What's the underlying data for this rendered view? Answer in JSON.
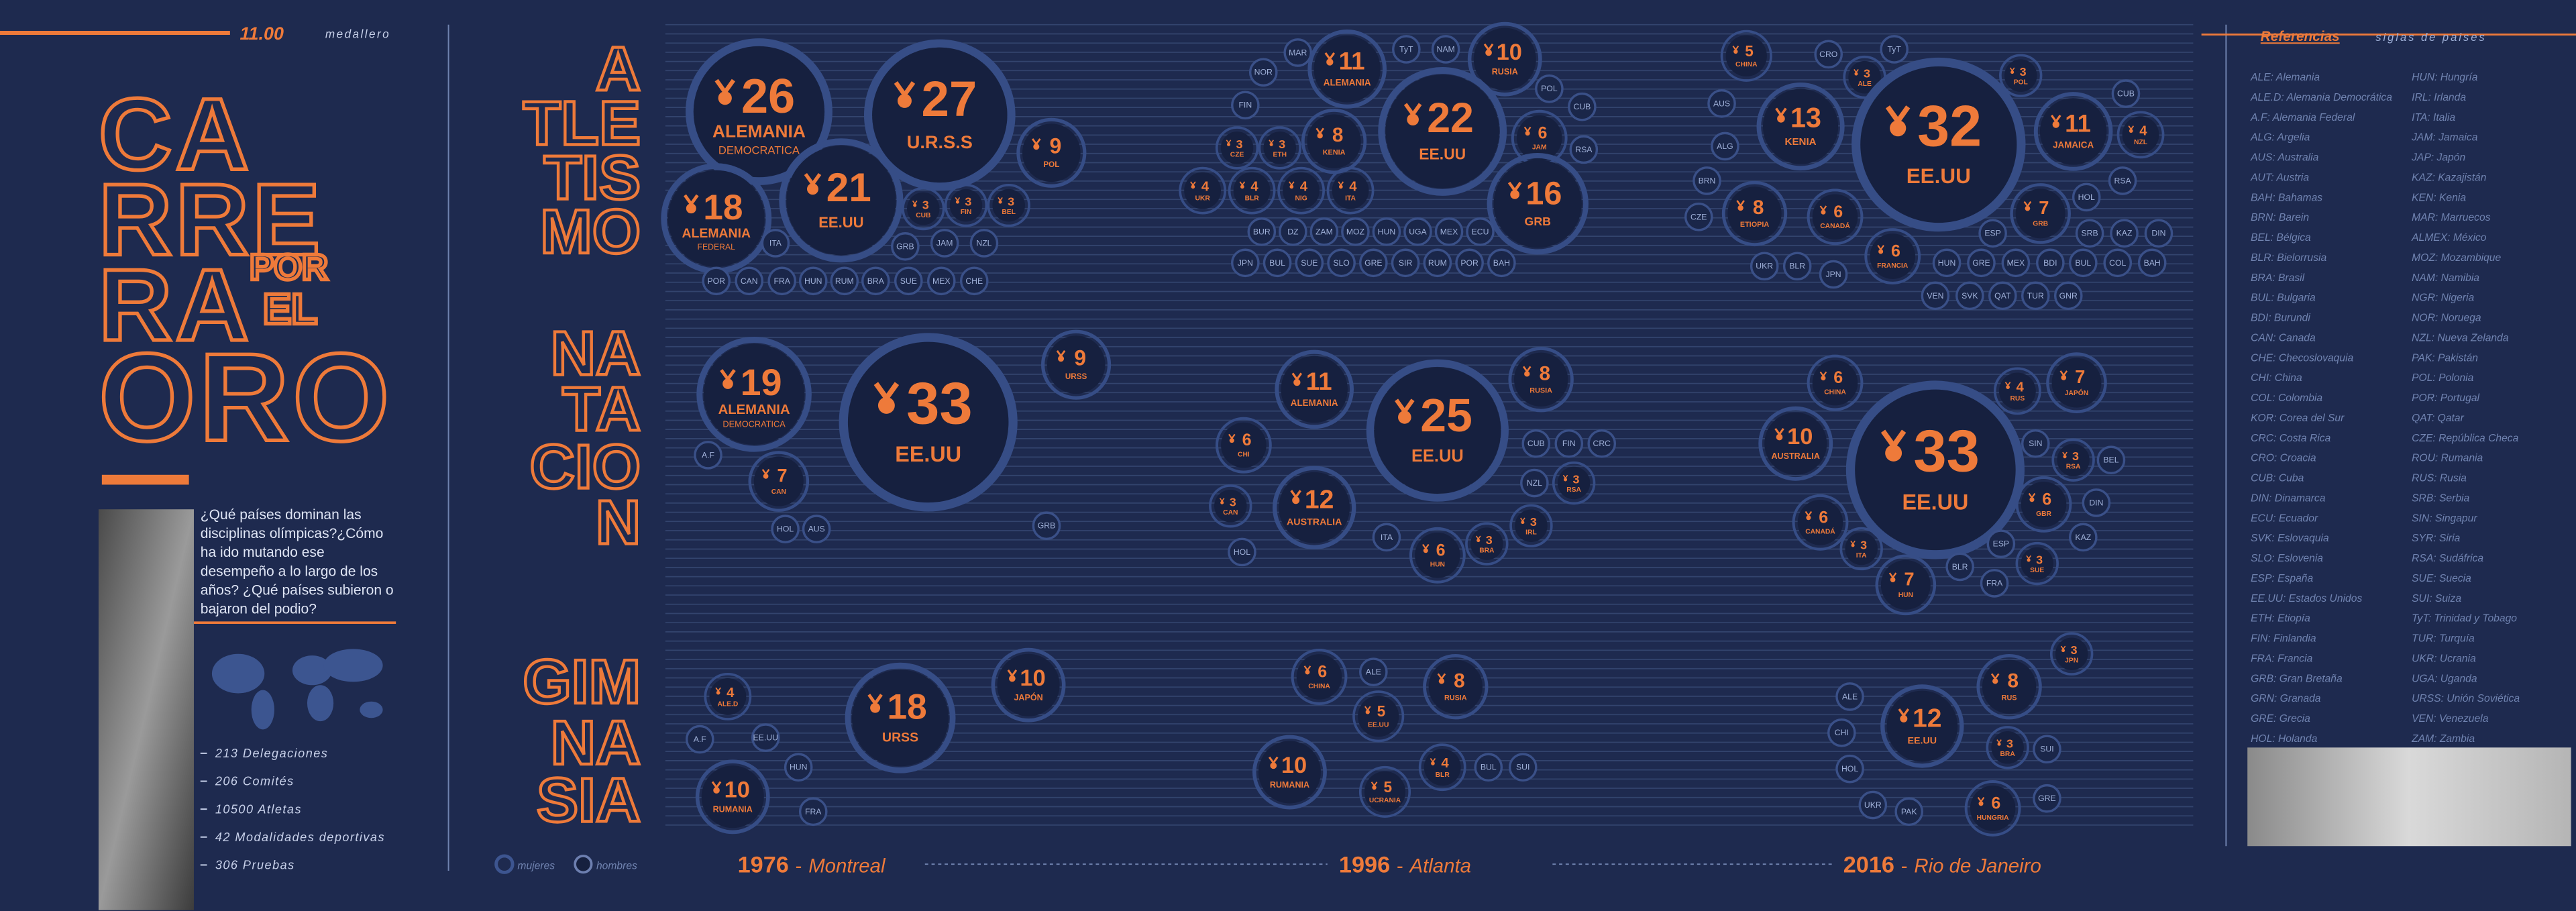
{
  "header": {
    "number": "11.00",
    "label": "medallero"
  },
  "title": {
    "lines": [
      "CA",
      "RRE",
      "RA",
      "ORO"
    ],
    "small": [
      "POR",
      "EL"
    ]
  },
  "intro": [
    "¿Qué países dominan las",
    "disciplinas olímpicas?¿Cómo",
    "ha ido mutando ese",
    "desempeño a lo largo de los",
    "años? ¿Qué países subieron o",
    "bajaron del podio?"
  ],
  "stats": [
    "213 Delegaciones",
    "206 Comités",
    "10500 Atletas",
    "42  Modalidades deportivas",
    "306 Pruebas"
  ],
  "legend": [
    "mujeres",
    "hombres"
  ],
  "sections": [
    {
      "title": [
        "A",
        "TLE",
        "TIS",
        "MO"
      ],
      "games": [
        {
          "bubbles": [
            {
              "name": "ALEMANIA",
              "sub": "DEMOCRATICA",
              "value": 26
            },
            {
              "name": "U.R.S.S",
              "value": 27
            },
            {
              "name": "POL",
              "value": 9
            },
            {
              "name": "ALEMANIA",
              "sub": "FEDERAL",
              "value": 18
            },
            {
              "name": "EE.UU",
              "value": 21
            },
            {
              "name": "CUB",
              "value": 3
            },
            {
              "name": "FIN",
              "value": 3
            },
            {
              "name": "BEL",
              "value": 3
            },
            {
              "name": "ITA"
            },
            {
              "name": "GRB"
            },
            {
              "name": "JAM"
            },
            {
              "name": "NZL"
            },
            {
              "name": "POR"
            },
            {
              "name": "CAN"
            },
            {
              "name": "FRA"
            },
            {
              "name": "HUN"
            },
            {
              "name": "RUM"
            },
            {
              "name": "BRA"
            },
            {
              "name": "SUE"
            },
            {
              "name": "MEX"
            },
            {
              "name": "CHE"
            }
          ]
        },
        {
          "bubbles": [
            {
              "name": "MAR"
            },
            {
              "name": "TyT"
            },
            {
              "name": "NAM"
            },
            {
              "name": "RUSIA",
              "value": 10
            },
            {
              "name": "NOR"
            },
            {
              "name": "ALEMANIA",
              "value": 11
            },
            {
              "name": "FIN"
            },
            {
              "name": "CZE",
              "value": 3
            },
            {
              "name": "ETH",
              "value": 3
            },
            {
              "name": "KENIA",
              "value": 8
            },
            {
              "name": "EE.UU",
              "value": 22
            },
            {
              "name": "POL"
            },
            {
              "name": "CUB"
            },
            {
              "name": "JAM",
              "value": 6
            },
            {
              "name": "RSA"
            },
            {
              "name": "UKR",
              "value": 4
            },
            {
              "name": "BLR",
              "value": 4
            },
            {
              "name": "NIG",
              "value": 4
            },
            {
              "name": "ITA",
              "value": 4
            },
            {
              "name": "GRB",
              "value": 16
            },
            {
              "name": "BUR"
            },
            {
              "name": "DZ"
            },
            {
              "name": "ZAM"
            },
            {
              "name": "MOZ"
            },
            {
              "name": "HUN"
            },
            {
              "name": "UGA"
            },
            {
              "name": "MEX"
            },
            {
              "name": "ECU"
            },
            {
              "name": "JPN"
            },
            {
              "name": "BUL"
            },
            {
              "name": "SUE"
            },
            {
              "name": "SLO"
            },
            {
              "name": "GRE"
            },
            {
              "name": "SIR"
            },
            {
              "name": "RUM"
            },
            {
              "name": "POR"
            },
            {
              "name": "BAH"
            }
          ]
        },
        {
          "bubbles": [
            {
              "name": "CHINA",
              "value": 5
            },
            {
              "name": "CRO"
            },
            {
              "name": "TyT"
            },
            {
              "name": "ALE",
              "value": 3
            },
            {
              "name": "POL",
              "value": 3
            },
            {
              "name": "CUB"
            },
            {
              "name": "AUS"
            },
            {
              "name": "KENIA",
              "value": 13
            },
            {
              "name": "EE.UU",
              "value": 32
            },
            {
              "name": "JAMAICA",
              "value": 11
            },
            {
              "name": "NZL",
              "value": 4
            },
            {
              "name": "ALG"
            },
            {
              "name": "RSA"
            },
            {
              "name": "BRN"
            },
            {
              "name": "HOL"
            },
            {
              "name": "CZE"
            },
            {
              "name": "ETIOPIA",
              "value": 8
            },
            {
              "name": "CANADÁ",
              "value": 6
            },
            {
              "name": "ESP"
            },
            {
              "name": "GRB",
              "value": 7
            },
            {
              "name": "SRB"
            },
            {
              "name": "KAZ"
            },
            {
              "name": "DIN"
            },
            {
              "name": "FRANCIA",
              "value": 6
            },
            {
              "name": "UKR"
            },
            {
              "name": "BLR"
            },
            {
              "name": "JPN"
            },
            {
              "name": "HUN"
            },
            {
              "name": "GRE"
            },
            {
              "name": "MEX"
            },
            {
              "name": "BDI"
            },
            {
              "name": "BUL"
            },
            {
              "name": "COL"
            },
            {
              "name": "BAH"
            },
            {
              "name": "VEN"
            },
            {
              "name": "SVK"
            },
            {
              "name": "QAT"
            },
            {
              "name": "TUR"
            },
            {
              "name": "GNR"
            }
          ]
        }
      ]
    },
    {
      "title": [
        "NA",
        "TA",
        "CIO",
        "N"
      ],
      "games": [
        {
          "bubbles": [
            {
              "name": "ALEMANIA",
              "sub": "DEMOCRATICA",
              "value": 19
            },
            {
              "name": "EE.UU",
              "value": 33
            },
            {
              "name": "URSS",
              "value": 9
            },
            {
              "name": "A.F"
            },
            {
              "name": "CAN",
              "value": 7
            },
            {
              "name": "HOL"
            },
            {
              "name": "AUS"
            },
            {
              "name": "GRB"
            }
          ]
        },
        {
          "bubbles": [
            {
              "name": "ALEMANIA",
              "value": 11
            },
            {
              "name": "RUSIA",
              "value": 8
            },
            {
              "name": "CHI",
              "value": 6
            },
            {
              "name": "EE.UU",
              "value": 25
            },
            {
              "name": "CUB"
            },
            {
              "name": "FIN"
            },
            {
              "name": "CRC"
            },
            {
              "name": "CAN",
              "value": 3
            },
            {
              "name": "AUSTRALIA",
              "value": 12
            },
            {
              "name": "NZL"
            },
            {
              "name": "RSA",
              "value": 3
            },
            {
              "name": "HOL"
            },
            {
              "name": "ITA"
            },
            {
              "name": "HUN",
              "value": 6
            },
            {
              "name": "BRA",
              "value": 3
            },
            {
              "name": "IRL",
              "value": 3
            }
          ]
        },
        {
          "bubbles": [
            {
              "name": "CHINA",
              "value": 6
            },
            {
              "name": "RUS",
              "value": 4
            },
            {
              "name": "JAPÓN",
              "value": 7
            },
            {
              "name": "AUSTRALIA",
              "value": 10
            },
            {
              "name": "EE.UU",
              "value": 33
            },
            {
              "name": "SIN"
            },
            {
              "name": "RSA",
              "value": 3
            },
            {
              "name": "BEL"
            },
            {
              "name": "CANADÁ",
              "value": 6
            },
            {
              "name": "GBR",
              "value": 6
            },
            {
              "name": "DIN"
            },
            {
              "name": "KAZ"
            },
            {
              "name": "ITA",
              "value": 3
            },
            {
              "name": "ESP"
            },
            {
              "name": "SUE",
              "value": 3
            },
            {
              "name": "BLR"
            },
            {
              "name": "FRA"
            },
            {
              "name": "HUN",
              "value": 7
            }
          ]
        }
      ]
    },
    {
      "title": [
        "GIM",
        "NA",
        "SIA"
      ],
      "games": [
        {
          "bubbles": [
            {
              "name": "ALE.D",
              "value": 4
            },
            {
              "name": "URSS",
              "value": 18
            },
            {
              "name": "JAPÓN",
              "value": 10
            },
            {
              "name": "A.F"
            },
            {
              "name": "EE.UU"
            },
            {
              "name": "HUN"
            },
            {
              "name": "RUMANIA",
              "value": 10
            },
            {
              "name": "FRA"
            }
          ]
        },
        {
          "bubbles": [
            {
              "name": "CHINA",
              "value": 6
            },
            {
              "name": "ALE"
            },
            {
              "name": "RUSIA",
              "value": 8
            },
            {
              "name": "EE.UU",
              "value": 5
            },
            {
              "name": "RUMANIA",
              "value": 10
            },
            {
              "name": "BLR",
              "value": 4
            },
            {
              "name": "BUL"
            },
            {
              "name": "SUI"
            },
            {
              "name": "UCRANIA",
              "value": 5
            }
          ]
        },
        {
          "bubbles": [
            {
              "name": "JPN",
              "value": 3
            },
            {
              "name": "RUS",
              "value": 8
            },
            {
              "name": "ALE"
            },
            {
              "name": "CHI"
            },
            {
              "name": "EE.UU",
              "value": 12
            },
            {
              "name": "BRA",
              "value": 3
            },
            {
              "name": "SUI"
            },
            {
              "name": "HOL"
            },
            {
              "name": "UKR"
            },
            {
              "name": "PAK"
            },
            {
              "name": "HUNGRIA",
              "value": 6
            },
            {
              "name": "GRE"
            }
          ]
        }
      ]
    }
  ],
  "timeline": [
    {
      "year": 1976,
      "sep": "-",
      "city": "Montreal"
    },
    {
      "year": 1996,
      "sep": "-",
      "city": "Atlanta"
    },
    {
      "year": 2016,
      "sep": "-",
      "city": "Rio de Janeiro"
    }
  ],
  "references": {
    "title": "Referencias",
    "subtitle": "siglas de paises",
    "items": [
      "ALE: Alemania",
      "ALE.D: Alemania Democrática",
      "A.F: Alemania Federal",
      "ALG: Argelia",
      "AUS: Australia",
      "AUT: Austria",
      "BAH: Bahamas",
      "BRN: Barein",
      "BEL: Bélgica",
      "BLR: Bielorrusia",
      "BRA: Brasil",
      "BUL: Bulgaria",
      "BDI: Burundi",
      "CAN: Canada",
      "CHE: Checoslovaquia",
      "CHI: China",
      "COL: Colombia",
      "KOR: Corea del Sur",
      "CRC: Costa Rica",
      "CRO: Croacia",
      "CUB: Cuba",
      "DIN: Dinamarca",
      "ECU: Ecuador",
      "SVK: Eslovaquia",
      "SLO: Eslovenia",
      "ESP: España",
      "EE.UU: Estados Unidos",
      "ETH: Etiopía",
      "FIN: Finlandia",
      "FRA: Francia",
      "GRB: Gran Bretaña",
      "GRN: Granada",
      "GRE: Grecia",
      "HOL: Holanda",
      "HUN: Hungría",
      "IRL: Irlanda",
      "ITA: Italia",
      "JAM: Jamaica",
      "JAP: Japón",
      "KAZ: Kazajistán",
      "KEN: Kenia",
      "MAR: Marruecos",
      "ALMEX: México",
      "MOZ: Mozambique",
      "NAM: Namibia",
      "NGR: Nigeria",
      "NOR: Noruega",
      "NZL: Nueva Zelanda",
      "PAK: Pakistán",
      "POL: Polonia",
      "POR: Portugal",
      "QAT: Qatar",
      "CZE: República Checa",
      "ROU: Rumania",
      "RUS: Rusia",
      "SRB: Serbia",
      "SIN: Singapur",
      "SYR: Siria",
      "RSA: Sudáfrica",
      "SUE: Suecia",
      "SUI: Suiza",
      "TyT: Trinidad y Tobago",
      "TUR: Turquía",
      "UKR: Ucrania",
      "UGA: Uganda",
      "URSS: Unión Soviética",
      "VEN: Venezuela",
      "ZAM: Zambia"
    ]
  }
}
